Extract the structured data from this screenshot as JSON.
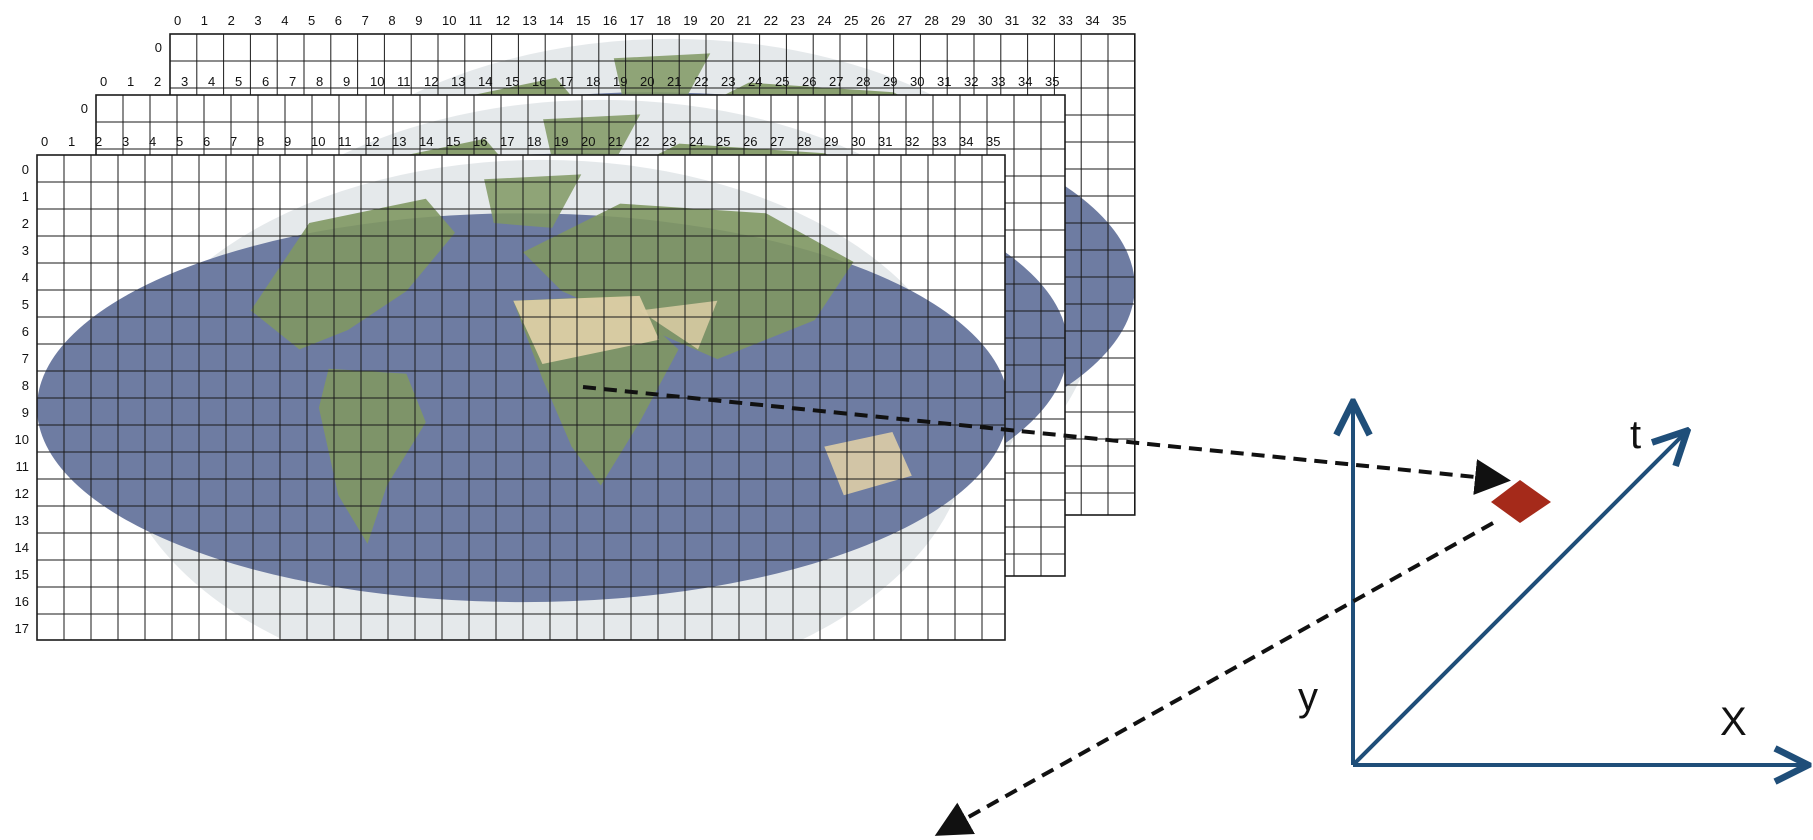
{
  "grids": {
    "column_labels": [
      "0",
      "1",
      "2",
      "3",
      "4",
      "5",
      "6",
      "7",
      "8",
      "9",
      "10",
      "11",
      "12",
      "13",
      "14",
      "15",
      "16",
      "17",
      "18",
      "19",
      "20",
      "21",
      "22",
      "23",
      "24",
      "25",
      "26",
      "27",
      "28",
      "29",
      "30",
      "31",
      "32",
      "33",
      "34",
      "35"
    ],
    "row_labels": [
      "0",
      "1",
      "2",
      "3",
      "4",
      "5",
      "6",
      "7",
      "8",
      "9",
      "10",
      "11",
      "12",
      "13",
      "14",
      "15",
      "16",
      "17"
    ],
    "back_row_label": "0",
    "layer_count": 3
  },
  "axes": {
    "y_label": "y",
    "x_label": "X",
    "t_label": "t"
  },
  "colors": {
    "ocean": "#5a6a96",
    "land": "#6f8a4e",
    "desert": "#d8c79a",
    "ice": "#d8dde2",
    "axis": "#1f4e79",
    "marker": "#a52a1a",
    "grid": "#1a1a1a"
  }
}
